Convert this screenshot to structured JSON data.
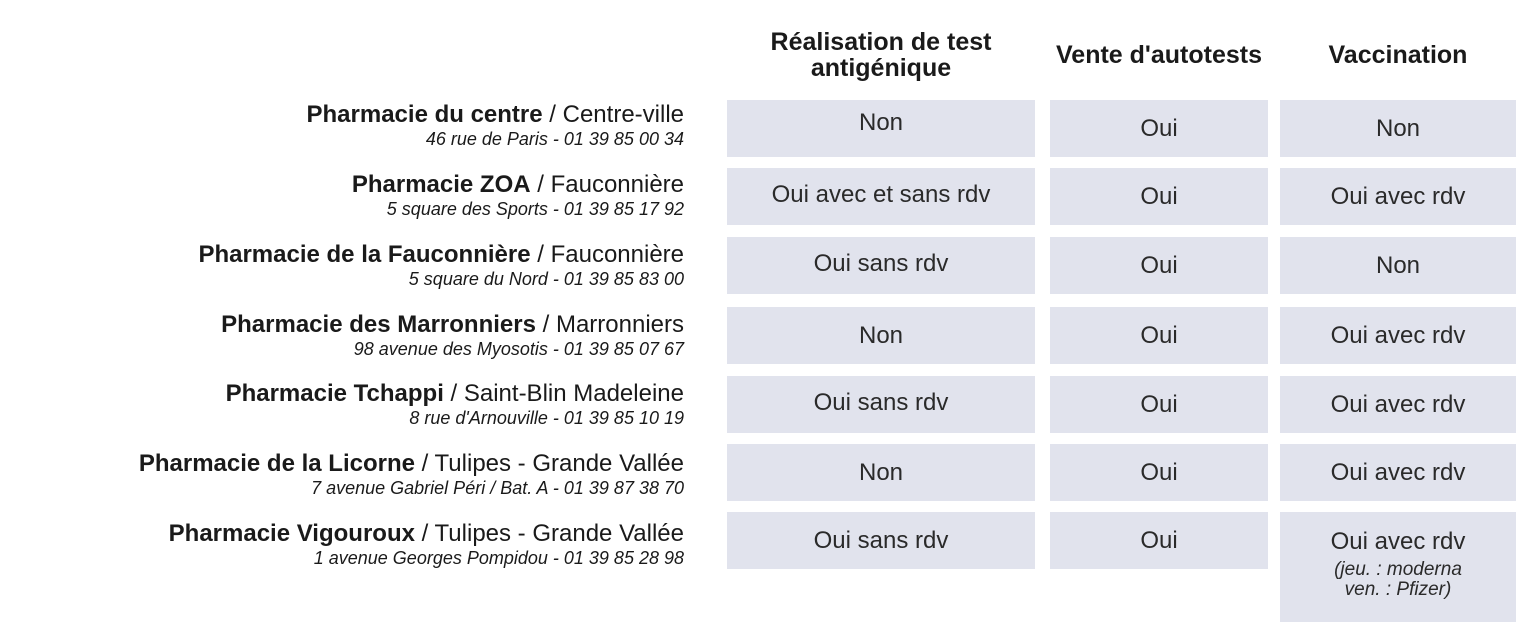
{
  "columns": {
    "antigen_test": "Réalisation de test antigénique",
    "autotests": "Vente d'autotests",
    "vaccination": "Vaccination"
  },
  "pharmacies": [
    {
      "name": "Pharmacie du centre",
      "area": " / Centre-ville",
      "address": "46 rue de Paris - 01 39 85 00 34",
      "antigen_test": "Non",
      "autotests": "Oui",
      "vaccination": "Non"
    },
    {
      "name": "Pharmacie ZOA",
      "area": " / Fauconnière",
      "address": "5 square des Sports - 01 39 85 17 92",
      "antigen_test": "Oui avec et sans rdv",
      "autotests": "Oui",
      "vaccination": "Oui avec rdv"
    },
    {
      "name": "Pharmacie de la Fauconnière",
      "area": " / Fauconnière",
      "address": "5 square du Nord - 01 39 85 83 00",
      "antigen_test": "Oui sans rdv",
      "autotests": "Oui",
      "vaccination": "Non"
    },
    {
      "name": "Pharmacie des Marronniers",
      "area": " / Marronniers",
      "address": "98 avenue des Myosotis - 01 39 85 07 67",
      "antigen_test": "Non",
      "autotests": "Oui",
      "vaccination": "Oui avec rdv"
    },
    {
      "name": "Pharmacie Tchappi",
      "area": " / Saint-Blin Madeleine",
      "address": "8 rue d'Arnouville - 01 39 85 10 19",
      "antigen_test": "Oui sans rdv",
      "autotests": "Oui",
      "vaccination": "Oui avec rdv"
    },
    {
      "name": "Pharmacie de la Licorne",
      "area": " /  Tulipes - Grande Vallée",
      "address": "7 avenue Gabriel Péri / Bat. A - 01 39 87 38 70",
      "antigen_test": "Non",
      "autotests": "Oui",
      "vaccination": "Oui avec rdv"
    },
    {
      "name": "Pharmacie Vigouroux",
      "area": " / Tulipes - Grande Vallée",
      "address": "1 avenue Georges Pompidou - 01 39 85 28 98",
      "antigen_test": "Oui sans rdv",
      "autotests": "Oui",
      "vaccination": "Oui avec rdv",
      "vaccination_note_1": "(jeu. : moderna",
      "vaccination_note_2": "ven. : Pfizer)"
    }
  ]
}
